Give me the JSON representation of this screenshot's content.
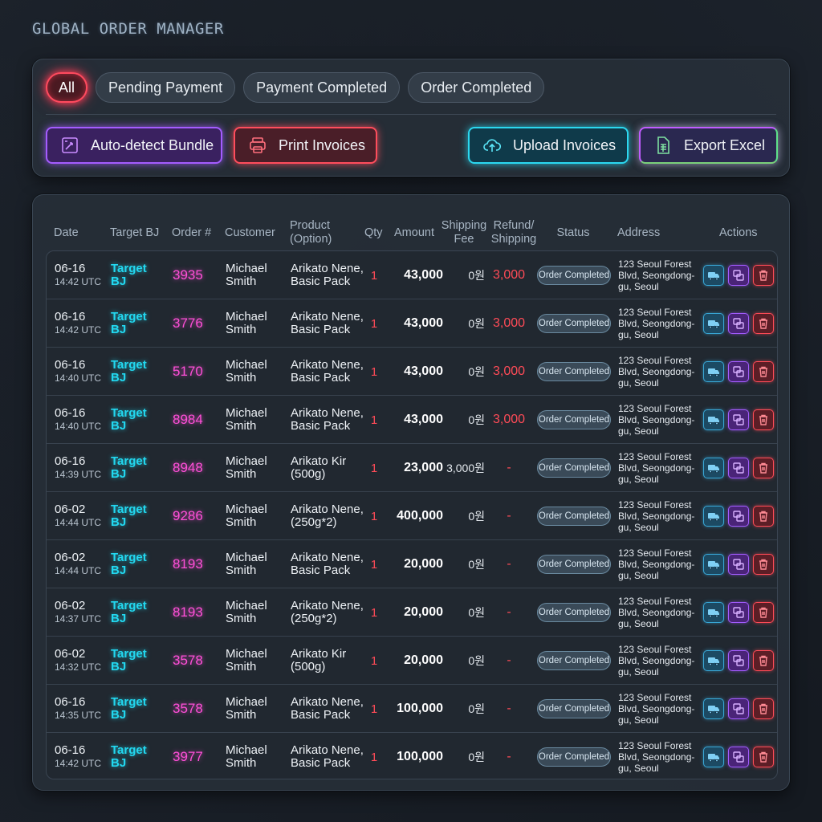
{
  "app_title": "GLOBAL ORDER MANAGER",
  "tabs": [
    {
      "label": "All",
      "active": true
    },
    {
      "label": "Pending Payment",
      "active": false
    },
    {
      "label": "Payment Completed",
      "active": false
    },
    {
      "label": "Order Completed",
      "active": false
    }
  ],
  "actions": {
    "bundle": "Auto-detect Bundle",
    "print": "Print Invoices",
    "upload": "Upload Invoices",
    "export": "Export Excel"
  },
  "columns": {
    "date": "Date",
    "target": "Target BJ",
    "order": "Order #",
    "customer": "Customer",
    "product_1": "Product",
    "product_2": "(Option)",
    "qty": "Qty",
    "amount": "Amount",
    "shipping_1": "Shipping",
    "shipping_2": "Fee",
    "refund_1": "Refund/",
    "refund_2": "Shipping",
    "status": "Status",
    "address": "Address",
    "actions": "Actions"
  },
  "rows": [
    {
      "date": "06-16",
      "time": "14:42 UTC",
      "target": "Target BJ",
      "order": "3935",
      "customer": "Michael Smith",
      "product": "Arikato Nene, Basic Pack",
      "qty": "1",
      "amount": "43,000",
      "shipping": "0원",
      "refund": "3,000",
      "status": "Order Completed",
      "address": "123 Seoul Forest Blvd, Seongdong-gu, Seoul"
    },
    {
      "date": "06-16",
      "time": "14:42 UTC",
      "target": "Target BJ",
      "order": "3776",
      "customer": "Michael Smith",
      "product": "Arikato Nene, Basic Pack",
      "qty": "1",
      "amount": "43,000",
      "shipping": "0원",
      "refund": "3,000",
      "status": "Order Completed",
      "address": "123 Seoul Forest Blvd, Seongdong-gu, Seoul"
    },
    {
      "date": "06-16",
      "time": "14:40 UTC",
      "target": "Target BJ",
      "order": "5170",
      "customer": "Michael Smith",
      "product": "Arikato Nene, Basic Pack",
      "qty": "1",
      "amount": "43,000",
      "shipping": "0원",
      "refund": "3,000",
      "status": "Order Completed",
      "address": "123 Seoul Forest Blvd, Seongdong-gu, Seoul"
    },
    {
      "date": "06-16",
      "time": "14:40 UTC",
      "target": "Target BJ",
      "order": "8984",
      "customer": "Michael Smith",
      "product": "Arikato Nene, Basic Pack",
      "qty": "1",
      "amount": "43,000",
      "shipping": "0원",
      "refund": "3,000",
      "status": "Order Completed",
      "address": "123 Seoul Forest Blvd, Seongdong-gu, Seoul"
    },
    {
      "date": "06-16",
      "time": "14:39 UTC",
      "target": "Target BJ",
      "order": "8948",
      "customer": "Michael Smith",
      "product": "Arikato Kir (500g)",
      "qty": "1",
      "amount": "23,000",
      "shipping": "3,000원",
      "refund": "-",
      "status": "Order Completed",
      "address": "123 Seoul Forest Blvd, Seongdong-gu, Seoul"
    },
    {
      "date": "06-02",
      "time": "14:44 UTC",
      "target": "Target BJ",
      "order": "9286",
      "customer": "Michael Smith",
      "product": "Arikato Nene, (250g*2)",
      "qty": "1",
      "amount": "400,000",
      "shipping": "0원",
      "refund": "-",
      "status": "Order Completed",
      "address": "123 Seoul Forest Blvd, Seongdong-gu, Seoul"
    },
    {
      "date": "06-02",
      "time": "14:44 UTC",
      "target": "Target BJ",
      "order": "8193",
      "customer": "Michael Smith",
      "product": "Arikato Nene, Basic Pack",
      "qty": "1",
      "amount": "20,000",
      "shipping": "0원",
      "refund": "-",
      "status": "Order Completed",
      "address": "123 Seoul Forest Blvd, Seongdong-gu, Seoul"
    },
    {
      "date": "06-02",
      "time": "14:37 UTC",
      "target": "Target BJ",
      "order": "8193",
      "customer": "Michael Smith",
      "product": "Arikato Nene, (250g*2)",
      "qty": "1",
      "amount": "20,000",
      "shipping": "0원",
      "refund": "-",
      "status": "Order Completed",
      "address": "123 Seoul Forest Blvd, Seongdong-gu, Seoul"
    },
    {
      "date": "06-02",
      "time": "14:32 UTC",
      "target": "Target BJ",
      "order": "3578",
      "customer": "Michael Smith",
      "product": "Arikato Kir (500g)",
      "qty": "1",
      "amount": "20,000",
      "shipping": "0원",
      "refund": "-",
      "status": "Order Completed",
      "address": "123 Seoul Forest Blvd, Seongdong-gu, Seoul"
    },
    {
      "date": "06-16",
      "time": "14:35 UTC",
      "target": "Target BJ",
      "order": "3578",
      "customer": "Michael Smith",
      "product": "Arikato Nene, Basic Pack",
      "qty": "1",
      "amount": "100,000",
      "shipping": "0원",
      "refund": "-",
      "status": "Order Completed",
      "address": "123 Seoul Forest Blvd, Seongdong-gu, Seoul"
    },
    {
      "date": "06-16",
      "time": "14:42 UTC",
      "target": "Target BJ",
      "order": "3977",
      "customer": "Michael Smith",
      "product": "Arikato Nene, Basic Pack",
      "qty": "1",
      "amount": "100,000",
      "shipping": "0원",
      "refund": "-",
      "status": "Order Completed",
      "address": "123 Seoul Forest Blvd, Seongdong-gu, Seoul"
    }
  ],
  "icons": {
    "row_actions": [
      "truck-icon",
      "swap-icon",
      "trash-icon"
    ],
    "bundle": "bundle-detect-icon",
    "print": "printer-icon",
    "upload": "cloud-upload-icon",
    "export": "spreadsheet-icon"
  },
  "colors": {
    "accent_cyan": "#22d8f0",
    "accent_magenta": "#ff4fd8",
    "accent_red": "#ff4b57",
    "accent_purple": "#a45cff"
  }
}
